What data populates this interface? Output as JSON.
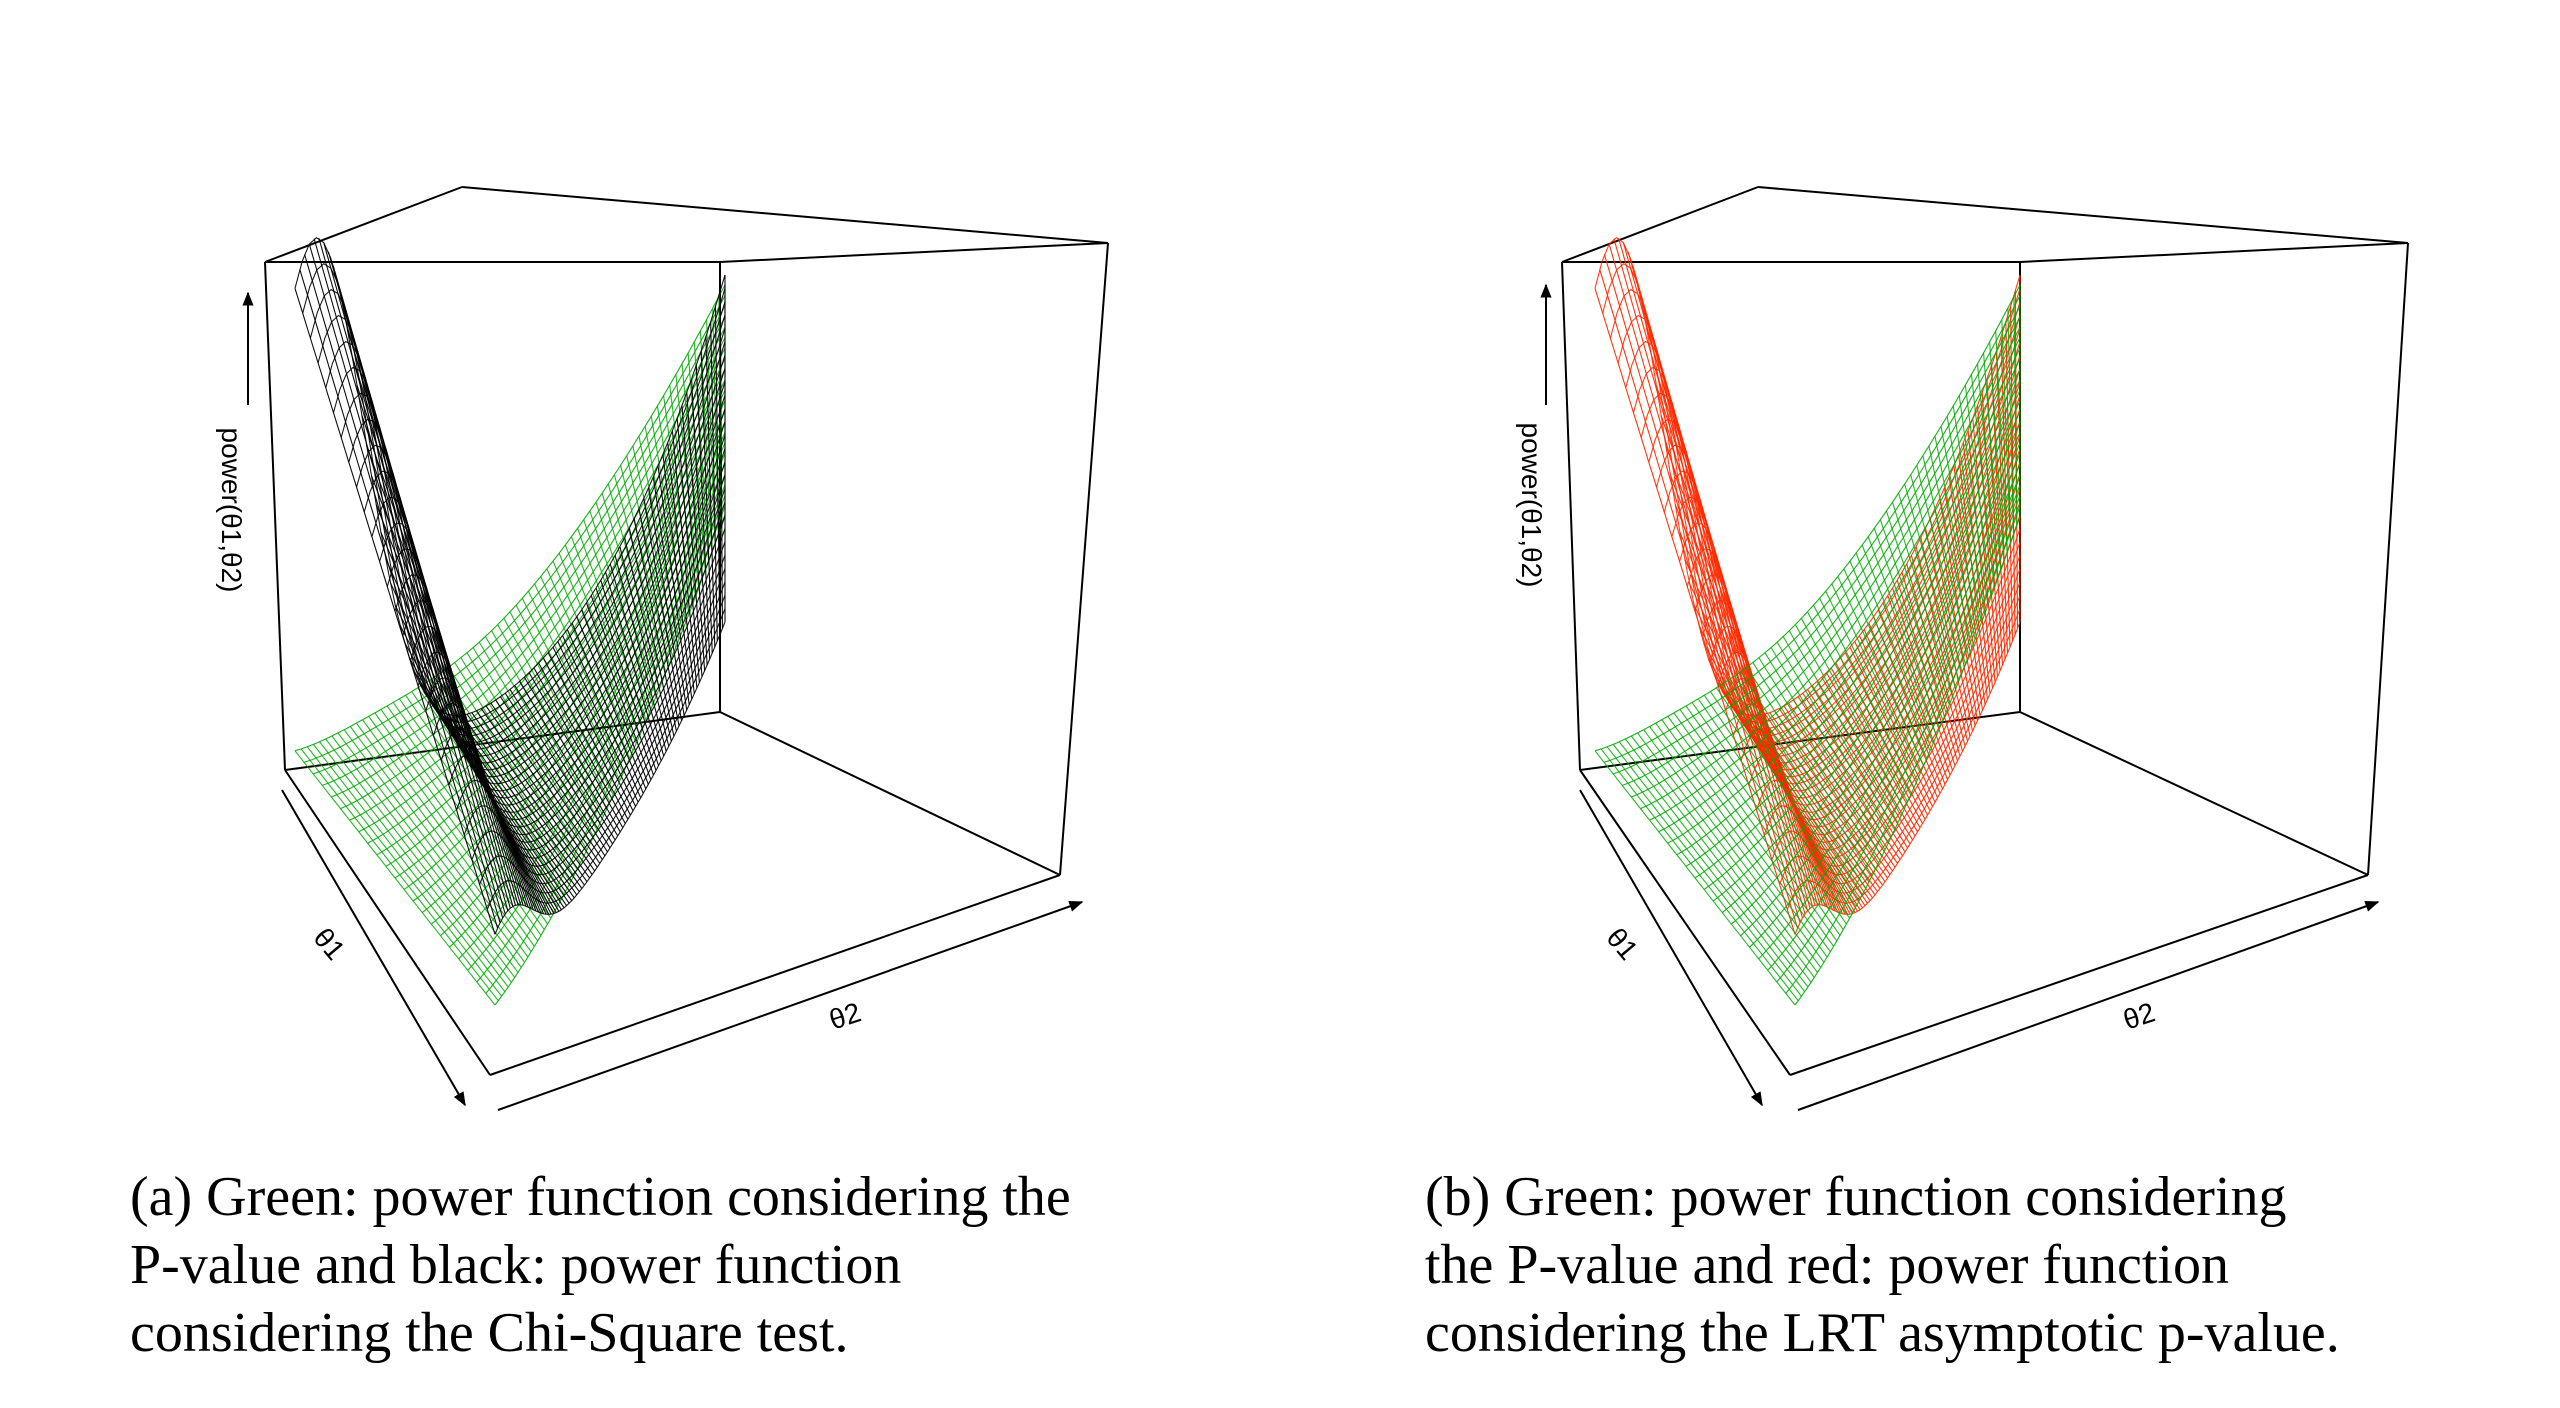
{
  "panels": [
    {
      "id": "a",
      "caption": [
        "(a) Green: power function considering the",
        "P-value and black: power function",
        "considering the Chi-Square test."
      ],
      "z_label": "power(θ1,θ2)",
      "x_label": "θ1",
      "y_label": "θ2",
      "series_colors": [
        "#00aa00",
        "#000000"
      ]
    },
    {
      "id": "b",
      "caption": [
        "(b) Green: power function considering",
        "the P-value and red: power function",
        "considering the LRT asymptotic p-value."
      ],
      "z_label": "power(θ1,θ2)",
      "x_label": "θ1",
      "y_label": "θ2",
      "series_colors": [
        "#00aa00",
        "#ff2a00"
      ]
    }
  ],
  "chart_data": [
    {
      "type": "surface",
      "title": "",
      "xlabel": "θ1",
      "ylabel": "θ2",
      "zlabel": "power(θ1,θ2)",
      "series": [
        {
          "color": "#00aa00",
          "description": "power function considering the P-value"
        },
        {
          "color": "#000000",
          "description": "power function considering the Chi-Square test"
        }
      ]
    },
    {
      "type": "surface",
      "title": "",
      "xlabel": "θ1",
      "ylabel": "θ2",
      "zlabel": "power(θ1,θ2)",
      "series": [
        {
          "color": "#00aa00",
          "description": "power function considering the P-value"
        },
        {
          "color": "#ff2a00",
          "description": "power function considering the LRT asymptotic p-value"
        }
      ]
    }
  ]
}
